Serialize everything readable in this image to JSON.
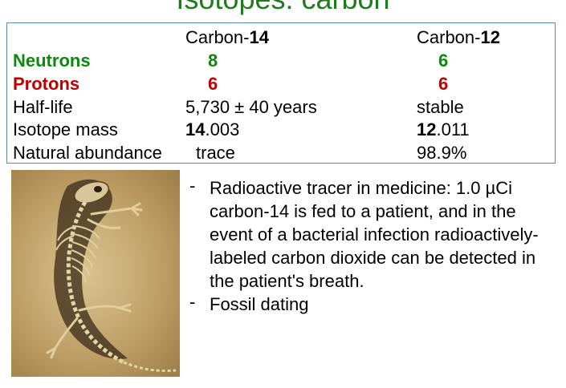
{
  "title": "Isotopes: carbon",
  "table": {
    "headers": {
      "c14": {
        "prefix": "Carbon-",
        "num": "14"
      },
      "c12": {
        "prefix": "Carbon-",
        "num": "12"
      }
    },
    "rows": {
      "neutrons": {
        "label": "Neutrons",
        "c14": "8",
        "c12": "6"
      },
      "protons": {
        "label": "Protons",
        "c14": "6",
        "c12": "6"
      },
      "halflife": {
        "label": "Half-life",
        "c14": "5,730 ± 40 years",
        "c12": "stable"
      },
      "mass": {
        "label": "Isotope mass",
        "c14_int": "14",
        "c14_dec": ".003",
        "c12_int": "12",
        "c12_dec": ".011"
      },
      "abundance": {
        "label": "Natural abundance",
        "c14": "trace",
        "c12": "98.9%"
      }
    }
  },
  "bullets": [
    "Radioactive tracer in medicine: 1.0 µCi carbon-14 is fed to a patient, and in the event of a bacterial infection radioactively-labeled carbon dioxide can be detected in the patient's breath.",
    "Fossil dating"
  ],
  "bullet_marker": "-",
  "colors": {
    "neutrons": "#0a8a0a",
    "protons": "#c00000",
    "table_border": "#5a86c4"
  }
}
